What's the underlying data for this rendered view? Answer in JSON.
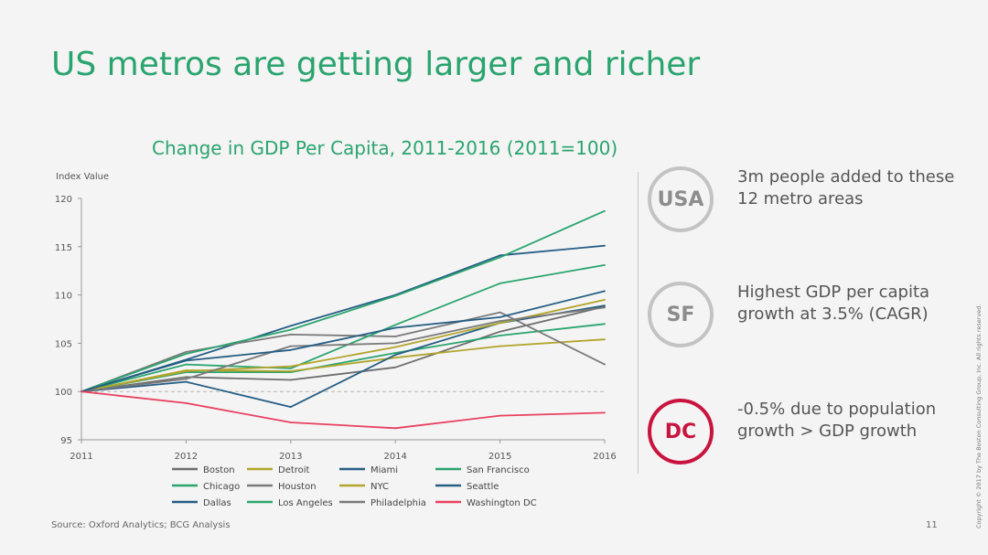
{
  "title": "US metros are getting larger and richer",
  "colors": {
    "green": "#2aa46e",
    "dc_red": "#c8143f",
    "circle_grey": "#c3c3c3"
  },
  "chart_data": {
    "type": "line",
    "title": "Change in GDP Per Capita, 2011-2016 (2011=100)",
    "ylabel": "Index Value",
    "xlabel": "",
    "x": [
      2011,
      2012,
      2013,
      2014,
      2015,
      2016
    ],
    "ylim": [
      95,
      120
    ],
    "yticks": [
      95,
      100,
      105,
      110,
      115,
      120
    ],
    "reference_line": 100,
    "grid": false,
    "legend_position": "bottom",
    "series": [
      {
        "name": "Boston",
        "color": "#6d6d6d",
        "values": [
          100,
          101.5,
          101.2,
          102.5,
          106.2,
          108.8
        ]
      },
      {
        "name": "Chicago",
        "color": "#2aa46e",
        "values": [
          100,
          102.0,
          102.0,
          104.0,
          105.8,
          107.0
        ]
      },
      {
        "name": "Dallas",
        "color": "#255e84",
        "values": [
          100,
          103.3,
          106.8,
          110.0,
          114.1,
          115.1
        ]
      },
      {
        "name": "Detroit",
        "color": "#b2a42c",
        "values": [
          100,
          102.2,
          102.1,
          103.5,
          104.7,
          105.4
        ]
      },
      {
        "name": "Houston",
        "color": "#7a7a7a",
        "values": [
          100,
          104.1,
          105.9,
          105.7,
          108.2,
          102.8
        ]
      },
      {
        "name": "Los Angeles",
        "color": "#2aa46e",
        "values": [
          100,
          102.8,
          102.4,
          106.9,
          111.2,
          113.1
        ]
      },
      {
        "name": "Miami",
        "color": "#255e84",
        "values": [
          100,
          101.0,
          98.4,
          103.8,
          107.1,
          108.9
        ]
      },
      {
        "name": "NYC",
        "color": "#b2a42c",
        "values": [
          100,
          102.1,
          102.6,
          104.6,
          107.1,
          109.5
        ]
      },
      {
        "name": "Philadelphia",
        "color": "#7a7a7a",
        "values": [
          100,
          101.3,
          104.7,
          105.0,
          107.3,
          108.7
        ]
      },
      {
        "name": "San Francisco",
        "color": "#2aa46e",
        "values": [
          100,
          103.9,
          106.4,
          109.9,
          113.9,
          118.7
        ]
      },
      {
        "name": "Seattle",
        "color": "#255e84",
        "values": [
          100,
          103.2,
          104.3,
          106.6,
          107.7,
          110.4
        ]
      },
      {
        "name": "Washington DC",
        "color": "#e8405f",
        "values": [
          100,
          98.8,
          96.8,
          96.2,
          97.5,
          97.8
        ]
      }
    ]
  },
  "callouts": [
    {
      "badge": "USA",
      "text": "3m people added to these 12 metro areas"
    },
    {
      "badge": "SF",
      "text": "Highest GDP per capita growth at 3.5% (CAGR)"
    },
    {
      "badge": "DC",
      "text": "-0.5% due to population growth > GDP growth"
    }
  ],
  "source": "Source: Oxford Analytics; BCG Analysis",
  "page_number": "11",
  "copyright": "Copyright © 2017 by The Boston Consulting Group, Inc. All rights reserved."
}
